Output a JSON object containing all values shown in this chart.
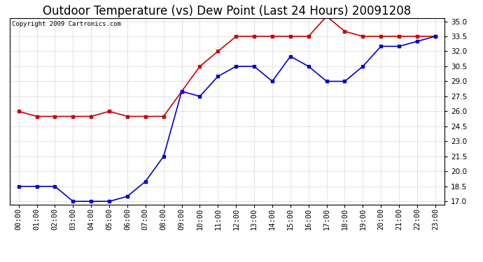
{
  "title": "Outdoor Temperature (vs) Dew Point (Last 24 Hours) 20091208",
  "copyright_text": "Copyright 2009 Cartronics.com",
  "x_labels": [
    "00:00",
    "01:00",
    "02:00",
    "03:00",
    "04:00",
    "05:00",
    "06:00",
    "07:00",
    "08:00",
    "09:00",
    "10:00",
    "11:00",
    "12:00",
    "13:00",
    "14:00",
    "15:00",
    "16:00",
    "17:00",
    "18:00",
    "19:00",
    "20:00",
    "21:00",
    "22:00",
    "23:00"
  ],
  "temp_data": [
    18.5,
    18.5,
    18.5,
    17.0,
    17.0,
    17.0,
    17.5,
    19.0,
    21.5,
    28.0,
    27.5,
    29.5,
    30.5,
    30.5,
    29.0,
    31.5,
    30.5,
    29.0,
    29.0,
    30.5,
    32.5,
    32.5,
    33.0,
    33.5
  ],
  "dew_data": [
    26.0,
    25.5,
    25.5,
    25.5,
    25.5,
    26.0,
    25.5,
    25.5,
    25.5,
    28.0,
    30.5,
    32.0,
    33.5,
    33.5,
    33.5,
    33.5,
    33.5,
    35.5,
    34.0,
    33.5,
    33.5,
    33.5,
    33.5,
    33.5
  ],
  "temp_color": "#0000CC",
  "dew_color": "#CC0000",
  "background_color": "#ffffff",
  "plot_bg_color": "#ffffff",
  "grid_color": "#bbbbbb",
  "ylim_min": 17.0,
  "ylim_max": 35.0,
  "yticks": [
    17.0,
    18.5,
    20.0,
    21.5,
    23.0,
    24.5,
    26.0,
    27.5,
    29.0,
    30.5,
    32.0,
    33.5,
    35.0
  ],
  "title_fontsize": 12,
  "tick_fontsize": 7.5,
  "copyright_fontsize": 6.5
}
